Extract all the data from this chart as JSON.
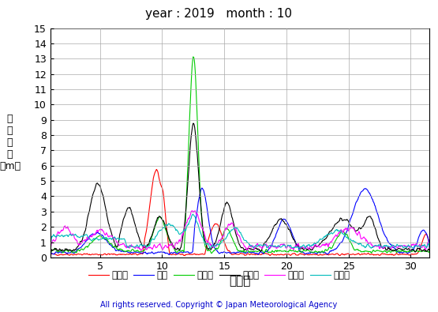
{
  "title": "year : 2019   month : 10",
  "xlabel": "（日）",
  "ylabel_chars": [
    "有",
    "義",
    "波",
    "高",
    "（m）"
  ],
  "xlim": [
    1,
    31.5
  ],
  "ylim": [
    0,
    15
  ],
  "yticks": [
    0,
    1,
    2,
    3,
    4,
    5,
    6,
    7,
    8,
    9,
    10,
    11,
    12,
    13,
    14,
    15
  ],
  "xticks": [
    5,
    10,
    15,
    20,
    25,
    30
  ],
  "series": {
    "上ノ国": {
      "color": "#ff0000",
      "lw": 0.8
    },
    "唐桑": {
      "color": "#0000ff",
      "lw": 0.8
    },
    "石廈崎": {
      "color": "#00cc00",
      "lw": 0.8
    },
    "経ヶ岸": {
      "color": "#000000",
      "lw": 0.8
    },
    "生月島": {
      "color": "#ff00ff",
      "lw": 0.8
    },
    "屋久島": {
      "color": "#00bbbb",
      "lw": 0.8
    }
  },
  "legend_order": [
    "上ノ国",
    "唐桑",
    "石廈崎",
    "経ヶ岸",
    "生月島",
    "屋久島"
  ],
  "copyright": "All rights reserved. Copyright © Japan Meteorological Agency",
  "copyright_color": "#0000cc",
  "background_color": "#ffffff",
  "grid_color": "#aaaaaa",
  "n_points": 744
}
